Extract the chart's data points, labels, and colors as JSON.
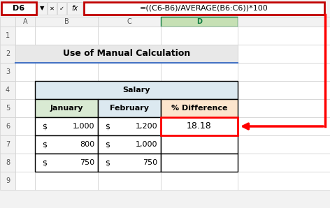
{
  "formula_bar_cell": "D6",
  "formula_bar_formula": "=((C6-B6)/AVERAGE(B6:C6))*100",
  "title": "Use of Manual Calculation",
  "salary_header": "Salary",
  "sub_headers": [
    "January",
    "February",
    "% Difference"
  ],
  "data_rows": [
    [
      "$",
      "1,000",
      "$",
      "1,200",
      "18.18"
    ],
    [
      "$",
      "800",
      "$",
      "1,000",
      ""
    ],
    [
      "$",
      "750",
      "$",
      "750",
      ""
    ]
  ],
  "bg_color": "#f2f2f2",
  "title_cell_bg": "#e8e8e8",
  "salary_header_bg": "#dce9f0",
  "jan_header_bg": "#d9ead3",
  "feb_header_bg": "#dce9f0",
  "pct_header_bg": "#fce5cd",
  "selected_col_bg": "#c6e0b4",
  "selected_cell_border": "#ff0000",
  "arrow_color": "#ff0000",
  "cell_border_color": "#d0d0d0",
  "table_border_color": "#000000",
  "formula_border_color": "#c00000",
  "blue_line_color": "#4472c4",
  "selected_col_text_color": "#107c41"
}
